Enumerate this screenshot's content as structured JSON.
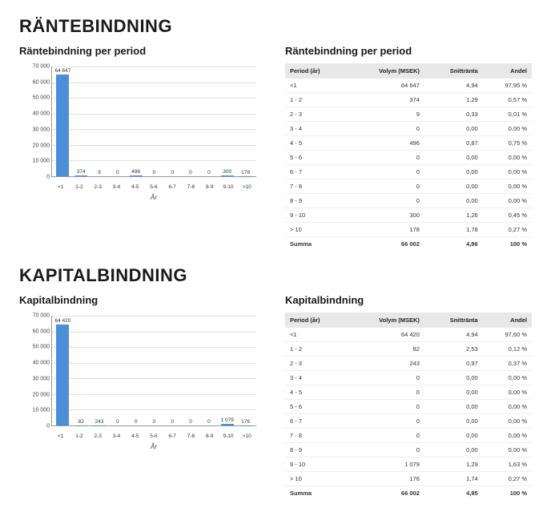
{
  "section1": {
    "title": "RÄNTEBINDNING",
    "chart_title": "Räntebindning per period",
    "table_title": "Räntebindning per period"
  },
  "section2": {
    "title": "KAPITALBINDNING",
    "chart_title": "Kapitalbindning",
    "table_title": "Kapitalbindning"
  },
  "chart": {
    "categories": [
      "<1",
      "1-2",
      "2-3",
      "3-4",
      "4-5",
      "5-6",
      "6-7",
      "7-8",
      "8-9",
      "9-10",
      ">10"
    ],
    "x_axis_label": "År",
    "ylim": [
      0,
      70000
    ],
    "ytick_step": 10000,
    "ytick_labels": [
      "0",
      "10 000",
      "20 000",
      "30 000",
      "40 000",
      "50 000",
      "60 000",
      "70 000"
    ],
    "bar_color": "#4a90d9",
    "grid_color": "#e0e0e0",
    "axis_color": "#999999",
    "background_color": "#ffffff",
    "value_fontsize": 6.5,
    "tick_fontsize": 7
  },
  "rante": {
    "chart_values": [
      64647,
      374,
      9,
      0,
      496,
      0,
      0,
      0,
      0,
      300,
      178
    ],
    "chart_value_labels": [
      "64 647",
      "374",
      "9",
      "0",
      "496",
      "0",
      "0",
      "0",
      "0",
      "300",
      "178"
    ],
    "table": {
      "columns": [
        "Period (år)",
        "Volym (MSEK)",
        "Snittränta",
        "Andel"
      ],
      "rows": [
        [
          "<1",
          "64 647",
          "4,94",
          "97,95 %"
        ],
        [
          "1 - 2",
          "374",
          "1,29",
          "0,57 %"
        ],
        [
          "2 - 3",
          "9",
          "0,33",
          "0,01 %"
        ],
        [
          "3 - 4",
          "0",
          "0,00",
          "0,00 %"
        ],
        [
          "4 - 5",
          "496",
          "0,87",
          "0,75 %"
        ],
        [
          "5 - 6",
          "0",
          "0,00",
          "0,00 %"
        ],
        [
          "6 - 7",
          "0",
          "0,00",
          "0,00 %"
        ],
        [
          "7 - 8",
          "0",
          "0,00",
          "0,00 %"
        ],
        [
          "8 - 9",
          "0",
          "0,00",
          "0,00 %"
        ],
        [
          "9 - 10",
          "300",
          "1,26",
          "0,45 %"
        ],
        [
          "> 10",
          "178",
          "1,78",
          "0,27 %"
        ]
      ],
      "sum": [
        "Summa",
        "66 002",
        "4,86",
        "100 %"
      ]
    }
  },
  "kapital": {
    "chart_values": [
      64420,
      82,
      243,
      0,
      0,
      0,
      0,
      0,
      0,
      1079,
      176
    ],
    "chart_value_labels": [
      "64 420",
      "82",
      "243",
      "0",
      "0",
      "0",
      "0",
      "0",
      "0",
      "1 079",
      "176"
    ],
    "table": {
      "columns": [
        "Period (år)",
        "Volym (MSEK)",
        "Snittränta",
        "Andel"
      ],
      "rows": [
        [
          "<1",
          "64 420",
          "4,94",
          "97,60 %"
        ],
        [
          "1 - 2",
          "82",
          "2,53",
          "0,12 %"
        ],
        [
          "2 - 3",
          "243",
          "0,97",
          "0,37 %"
        ],
        [
          "3 - 4",
          "0",
          "0,00",
          "0,00 %"
        ],
        [
          "4 - 5",
          "0",
          "0,00",
          "0,00 %"
        ],
        [
          "5 - 6",
          "0",
          "0,00",
          "0,00 %"
        ],
        [
          "6 - 7",
          "0",
          "0,00",
          "0,00 %"
        ],
        [
          "7 - 8",
          "0",
          "0,00",
          "0,00 %"
        ],
        [
          "8 - 9",
          "0",
          "0,00",
          "0,00 %"
        ],
        [
          "9 - 10",
          "1 079",
          "1,29",
          "1,63 %"
        ],
        [
          "> 10",
          "176",
          "1,74",
          "0,27 %"
        ]
      ],
      "sum": [
        "Summa",
        "66 002",
        "4,85",
        "100 %"
      ]
    }
  }
}
